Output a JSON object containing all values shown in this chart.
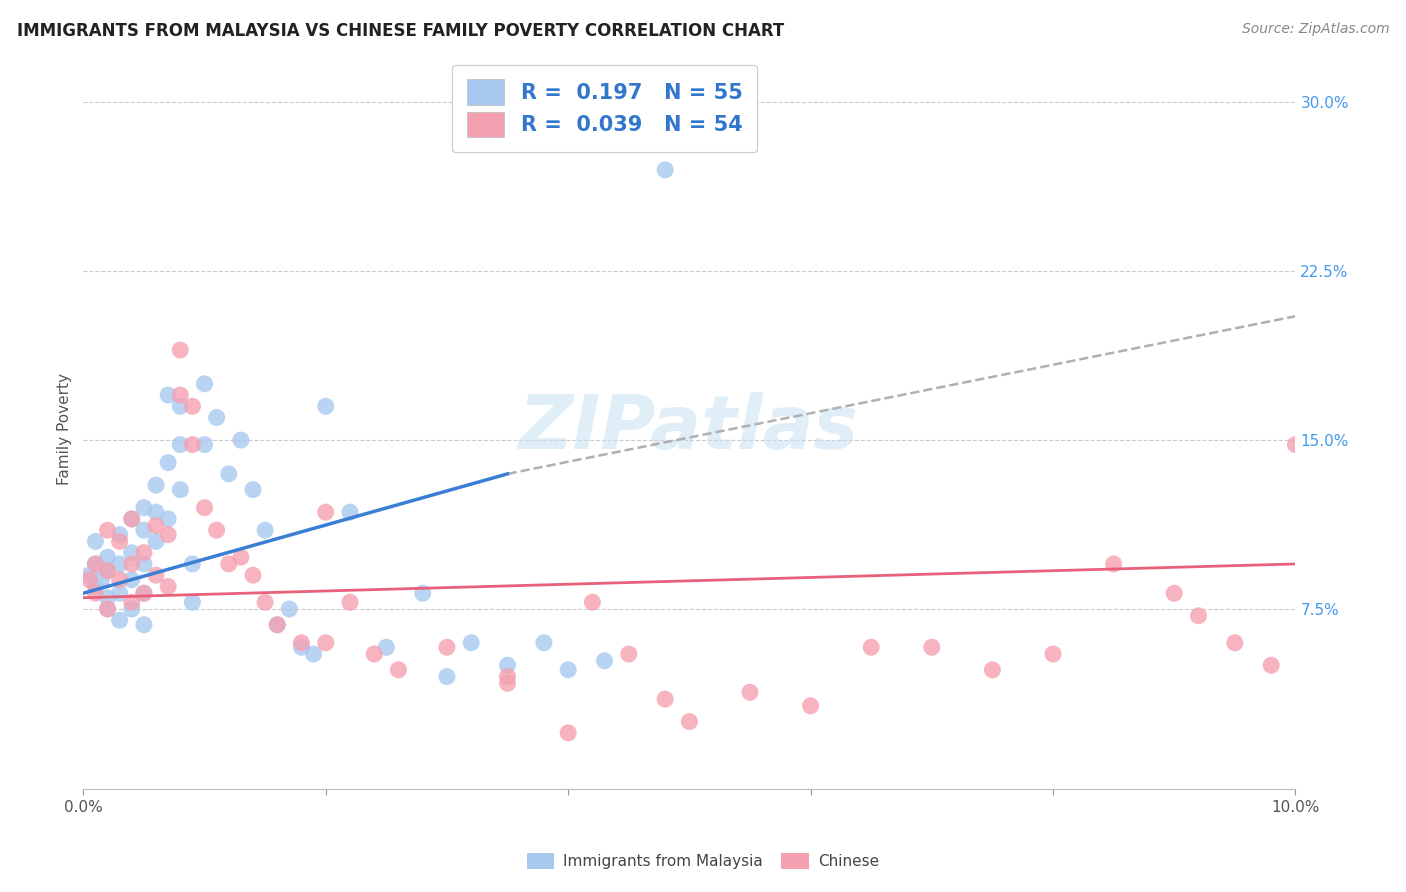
{
  "title": "IMMIGRANTS FROM MALAYSIA VS CHINESE FAMILY POVERTY CORRELATION CHART",
  "source": "Source: ZipAtlas.com",
  "ylabel": "Family Poverty",
  "xlim": [
    0.0,
    0.1
  ],
  "ylim": [
    -0.005,
    0.315
  ],
  "xtick_vals": [
    0.0,
    0.02,
    0.04,
    0.06,
    0.08,
    0.1
  ],
  "xticklabels": [
    "0.0%",
    "",
    "",
    "",
    "",
    "10.0%"
  ],
  "ytick_right_labels": [
    "7.5%",
    "15.0%",
    "22.5%",
    "30.0%"
  ],
  "ytick_right_values": [
    0.075,
    0.15,
    0.225,
    0.3
  ],
  "color_blue": "#a8c8f0",
  "color_pink": "#f5a0b0",
  "line_blue": "#3a7fd4",
  "line_pink": "#e8607a",
  "line_dashed_color": "#b0b0b0",
  "watermark": "ZIPatlas",
  "legend_r1": "R =  0.197",
  "legend_n1": "N = 55",
  "legend_r2": "R =  0.039",
  "legend_n2": "N = 54",
  "blue_scatter_x": [
    0.0005,
    0.001,
    0.001,
    0.001,
    0.0015,
    0.002,
    0.002,
    0.002,
    0.002,
    0.003,
    0.003,
    0.003,
    0.003,
    0.004,
    0.004,
    0.004,
    0.004,
    0.005,
    0.005,
    0.005,
    0.005,
    0.005,
    0.006,
    0.006,
    0.006,
    0.007,
    0.007,
    0.007,
    0.008,
    0.008,
    0.008,
    0.009,
    0.009,
    0.01,
    0.01,
    0.011,
    0.012,
    0.013,
    0.014,
    0.015,
    0.016,
    0.017,
    0.018,
    0.019,
    0.02,
    0.022,
    0.025,
    0.028,
    0.03,
    0.032,
    0.035,
    0.038,
    0.04,
    0.043,
    0.048
  ],
  "blue_scatter_y": [
    0.09,
    0.085,
    0.095,
    0.105,
    0.088,
    0.092,
    0.08,
    0.075,
    0.098,
    0.108,
    0.095,
    0.082,
    0.07,
    0.115,
    0.1,
    0.088,
    0.075,
    0.12,
    0.11,
    0.095,
    0.082,
    0.068,
    0.13,
    0.118,
    0.105,
    0.17,
    0.14,
    0.115,
    0.165,
    0.148,
    0.128,
    0.095,
    0.078,
    0.175,
    0.148,
    0.16,
    0.135,
    0.15,
    0.128,
    0.11,
    0.068,
    0.075,
    0.058,
    0.055,
    0.165,
    0.118,
    0.058,
    0.082,
    0.045,
    0.06,
    0.05,
    0.06,
    0.048,
    0.052,
    0.27
  ],
  "pink_scatter_x": [
    0.0005,
    0.001,
    0.001,
    0.002,
    0.002,
    0.002,
    0.003,
    0.003,
    0.004,
    0.004,
    0.004,
    0.005,
    0.005,
    0.006,
    0.006,
    0.007,
    0.007,
    0.008,
    0.008,
    0.009,
    0.009,
    0.01,
    0.011,
    0.012,
    0.013,
    0.014,
    0.015,
    0.016,
    0.018,
    0.02,
    0.022,
    0.024,
    0.026,
    0.03,
    0.035,
    0.04,
    0.042,
    0.045,
    0.048,
    0.05,
    0.055,
    0.06,
    0.065,
    0.07,
    0.075,
    0.08,
    0.085,
    0.09,
    0.092,
    0.095,
    0.098,
    0.1,
    0.02,
    0.035
  ],
  "pink_scatter_y": [
    0.088,
    0.095,
    0.082,
    0.11,
    0.092,
    0.075,
    0.105,
    0.088,
    0.115,
    0.095,
    0.078,
    0.1,
    0.082,
    0.112,
    0.09,
    0.108,
    0.085,
    0.19,
    0.17,
    0.165,
    0.148,
    0.12,
    0.11,
    0.095,
    0.098,
    0.09,
    0.078,
    0.068,
    0.06,
    0.118,
    0.078,
    0.055,
    0.048,
    0.058,
    0.042,
    0.02,
    0.078,
    0.055,
    0.035,
    0.025,
    0.038,
    0.032,
    0.058,
    0.058,
    0.048,
    0.055,
    0.095,
    0.082,
    0.072,
    0.06,
    0.05,
    0.148,
    0.06,
    0.045
  ],
  "blue_line_x": [
    0.0,
    0.035
  ],
  "blue_line_y": [
    0.082,
    0.135
  ],
  "dashed_line_x": [
    0.035,
    0.1
  ],
  "dashed_line_y": [
    0.135,
    0.205
  ],
  "pink_line_x": [
    0.0,
    0.1
  ],
  "pink_line_y": [
    0.08,
    0.095
  ]
}
